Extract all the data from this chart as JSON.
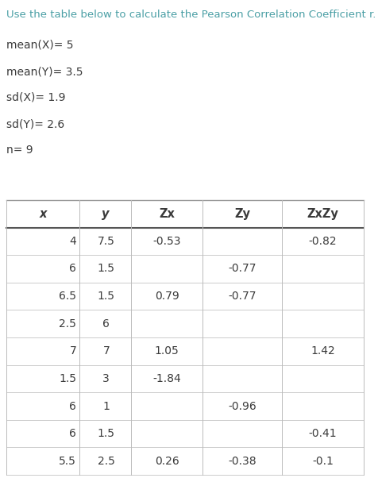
{
  "title": "Use the table below to calculate the Pearson Correlation Coefficient r.",
  "stats": [
    "mean(X)= 5",
    "mean(Y)= 3.5",
    "sd(X)= 1.9",
    "sd(Y)= 2.6",
    "n= 9"
  ],
  "col_headers": [
    "x",
    "y",
    "Zx",
    "Zy",
    "ZxZy"
  ],
  "table_data": [
    [
      "4",
      "7.5",
      "-0.53",
      "",
      "-0.82"
    ],
    [
      "6",
      "1.5",
      "",
      "-0.77",
      ""
    ],
    [
      "6.5",
      "1.5",
      "0.79",
      "-0.77",
      ""
    ],
    [
      "2.5",
      "6",
      "",
      "",
      ""
    ],
    [
      "7",
      "7",
      "1.05",
      "",
      "1.42"
    ],
    [
      "1.5",
      "3",
      "-1.84",
      "",
      ""
    ],
    [
      "6",
      "1",
      "",
      "-0.96",
      ""
    ],
    [
      "6",
      "1.5",
      "",
      "",
      "-0.41"
    ],
    [
      "5.5",
      "2.5",
      "0.26",
      "-0.38",
      "-0.1"
    ]
  ],
  "bg_color": "#ffffff",
  "text_color": "#3a3a3a",
  "teal_color": "#4a9fa5",
  "title_fontsize": 9.5,
  "stats_fontsize": 10,
  "table_fontsize": 10,
  "header_fontsize": 10.5
}
